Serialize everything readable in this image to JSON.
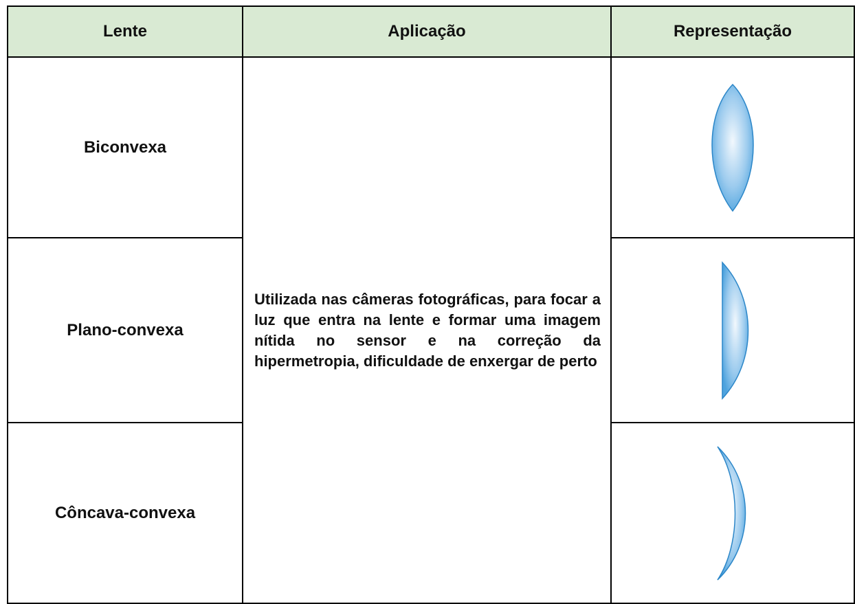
{
  "table": {
    "header": [
      "Lente",
      "Aplicação",
      "Representação"
    ],
    "rows": [
      {
        "lens": "Biconvexa"
      },
      {
        "lens": "Plano-convexa"
      },
      {
        "lens": "Côncava-convexa"
      }
    ],
    "application": "Utilizada nas câmeras fotográficas, para focar a luz que entra na lente e formar uma imagem nítida no sensor e na correção da hipermetropia, dificuldade de enxergar de perto"
  }
}
